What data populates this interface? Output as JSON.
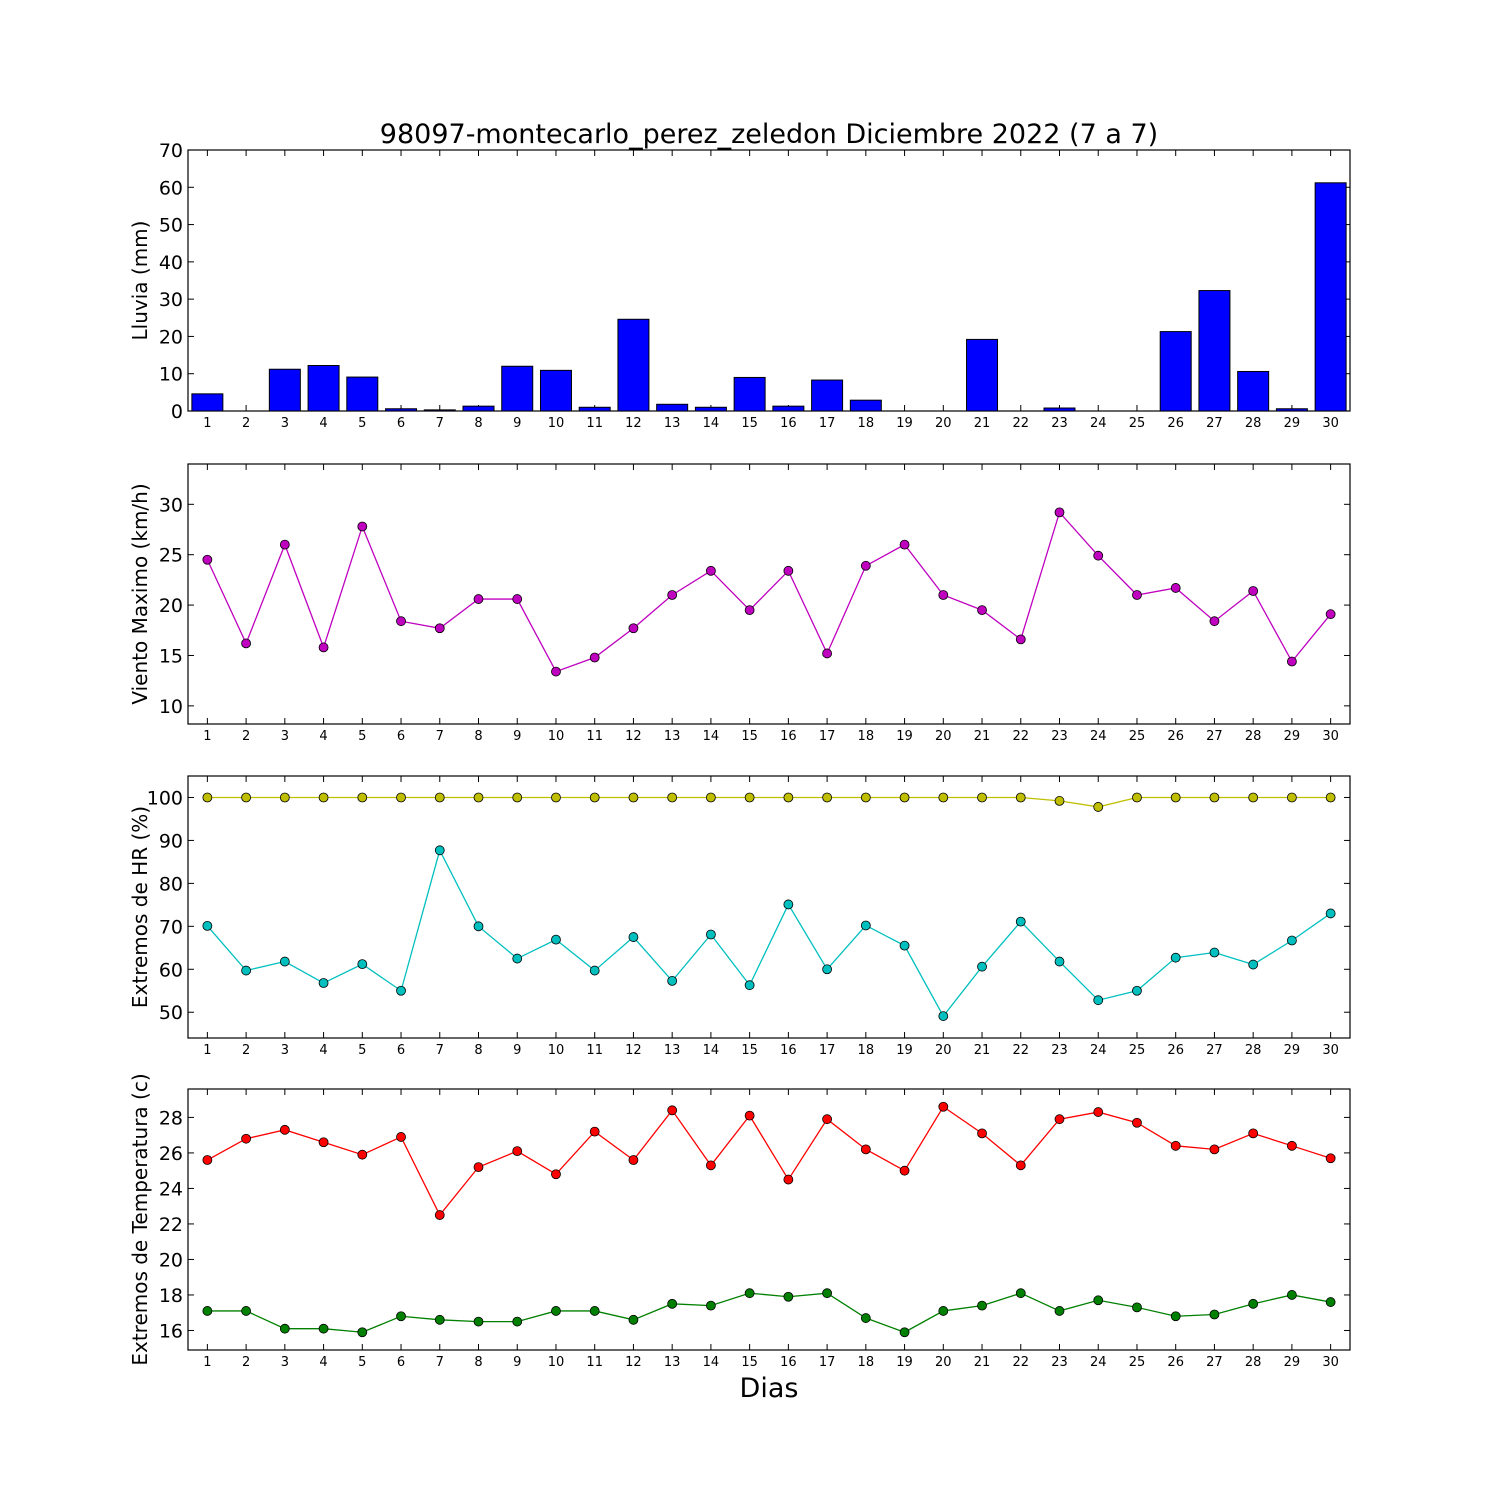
{
  "chart_data": [
    {
      "type": "bar",
      "title": "98097-montecarlo_perez_zeledon Diciembre 2022  (7 a 7)",
      "ylabel": "Lluvia (mm)",
      "ylim": [
        0,
        70
      ],
      "yticks": [
        0,
        10,
        20,
        30,
        40,
        50,
        60,
        70
      ],
      "categories": [
        1,
        2,
        3,
        4,
        5,
        6,
        7,
        8,
        9,
        10,
        11,
        12,
        13,
        14,
        15,
        16,
        17,
        18,
        19,
        20,
        21,
        22,
        23,
        24,
        25,
        26,
        27,
        28,
        29,
        30
      ],
      "color": "#0000ff",
      "values": [
        4.6,
        0.0,
        11.2,
        12.2,
        9.1,
        0.6,
        0.3,
        1.3,
        12.0,
        10.9,
        1.0,
        24.6,
        1.8,
        1.0,
        9.0,
        1.3,
        8.3,
        2.9,
        0.0,
        0.0,
        19.2,
        0.0,
        0.8,
        0.0,
        0.0,
        21.3,
        32.3,
        10.6,
        0.6,
        61.2
      ]
    },
    {
      "type": "line",
      "ylabel": "Viento Maximo (km/h)",
      "ylim": [
        8.2,
        34
      ],
      "yticks": [
        10,
        15,
        20,
        25,
        30
      ],
      "x": [
        1,
        2,
        3,
        4,
        5,
        6,
        7,
        8,
        9,
        10,
        11,
        12,
        13,
        14,
        15,
        16,
        17,
        18,
        19,
        20,
        21,
        22,
        23,
        24,
        25,
        26,
        27,
        28,
        29,
        30
      ],
      "series": [
        {
          "color": "#bf00bf",
          "values": [
            24.5,
            16.2,
            26.0,
            15.8,
            27.8,
            18.4,
            17.7,
            20.6,
            20.6,
            13.4,
            14.8,
            17.7,
            21.0,
            23.4,
            19.5,
            23.4,
            15.2,
            23.9,
            26.0,
            21.0,
            19.5,
            16.6,
            29.2,
            24.9,
            21.0,
            21.7,
            18.4,
            21.4,
            14.4,
            19.1
          ]
        }
      ]
    },
    {
      "type": "line",
      "ylabel": "Extremos de HR (%)",
      "ylim": [
        44,
        105
      ],
      "yticks": [
        50,
        60,
        70,
        80,
        90,
        100
      ],
      "x": [
        1,
        2,
        3,
        4,
        5,
        6,
        7,
        8,
        9,
        10,
        11,
        12,
        13,
        14,
        15,
        16,
        17,
        18,
        19,
        20,
        21,
        22,
        23,
        24,
        25,
        26,
        27,
        28,
        29,
        30
      ],
      "series": [
        {
          "color": "#bfbf00",
          "values": [
            100,
            100,
            100,
            100,
            100,
            100,
            100,
            100,
            100,
            100,
            100,
            100,
            100,
            100,
            100,
            100,
            100,
            100,
            100,
            100,
            100,
            100,
            99.2,
            97.8,
            100,
            100,
            100,
            100,
            100,
            100
          ]
        },
        {
          "color": "#00bfbf",
          "values": [
            70.1,
            59.7,
            61.8,
            56.8,
            61.2,
            55.0,
            87.7,
            70.0,
            62.5,
            66.9,
            59.7,
            67.5,
            57.3,
            68.1,
            56.3,
            75.1,
            60.0,
            70.2,
            65.5,
            49.1,
            60.6,
            71.1,
            61.8,
            52.8,
            55.0,
            62.7,
            63.9,
            61.1,
            66.7,
            73.0
          ]
        }
      ]
    },
    {
      "type": "line",
      "ylabel": "Extremos de Temperatura (c)",
      "xlabel": "Dias",
      "ylim": [
        14.9,
        29.6
      ],
      "yticks": [
        16,
        18,
        20,
        22,
        24,
        26,
        28
      ],
      "x": [
        1,
        2,
        3,
        4,
        5,
        6,
        7,
        8,
        9,
        10,
        11,
        12,
        13,
        14,
        15,
        16,
        17,
        18,
        19,
        20,
        21,
        22,
        23,
        24,
        25,
        26,
        27,
        28,
        29,
        30
      ],
      "series": [
        {
          "color": "#ff0000",
          "values": [
            25.6,
            26.8,
            27.3,
            26.6,
            25.9,
            26.9,
            22.5,
            25.2,
            26.1,
            24.8,
            27.2,
            25.6,
            28.4,
            25.3,
            28.1,
            24.5,
            27.9,
            26.2,
            25.0,
            28.6,
            27.1,
            25.3,
            27.9,
            28.3,
            27.7,
            26.4,
            26.2,
            27.1,
            26.4,
            25.7
          ]
        },
        {
          "color": "#008000",
          "values": [
            17.1,
            17.1,
            16.1,
            16.1,
            15.9,
            16.8,
            16.6,
            16.5,
            16.5,
            17.1,
            17.1,
            16.6,
            17.5,
            17.4,
            18.1,
            17.9,
            18.1,
            16.7,
            15.9,
            17.1,
            17.4,
            18.1,
            17.1,
            17.7,
            17.3,
            16.8,
            16.9,
            17.5,
            18.0,
            17.6
          ]
        }
      ]
    }
  ]
}
